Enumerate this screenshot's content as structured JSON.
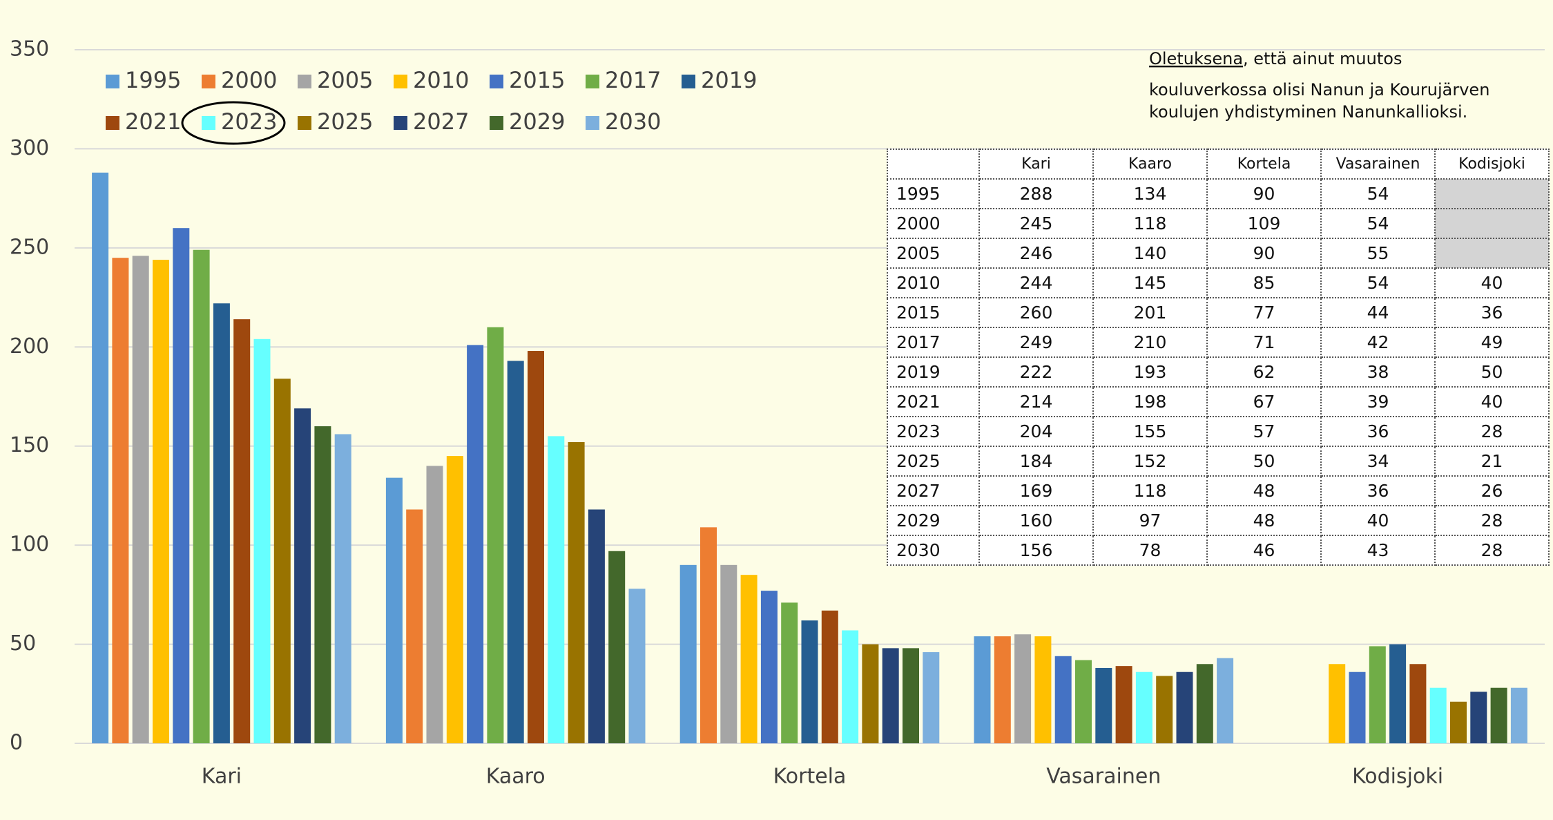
{
  "chart_data": {
    "type": "bar",
    "categories": [
      "Kari",
      "Kaaro",
      "Kortela",
      "Vasarainen",
      "Kodisjoki"
    ],
    "series": [
      {
        "name": "1995",
        "color": "#5b9bd5",
        "values": [
          288,
          134,
          90,
          54,
          null
        ]
      },
      {
        "name": "2000",
        "color": "#ed7d31",
        "values": [
          245,
          118,
          109,
          54,
          null
        ]
      },
      {
        "name": "2005",
        "color": "#a5a5a5",
        "values": [
          246,
          140,
          90,
          55,
          null
        ]
      },
      {
        "name": "2010",
        "color": "#ffc000",
        "values": [
          244,
          145,
          85,
          54,
          40
        ]
      },
      {
        "name": "2015",
        "color": "#4472c4",
        "values": [
          260,
          201,
          77,
          44,
          36
        ]
      },
      {
        "name": "2017",
        "color": "#70ad47",
        "values": [
          249,
          210,
          71,
          42,
          49
        ]
      },
      {
        "name": "2019",
        "color": "#255e91",
        "values": [
          222,
          193,
          62,
          38,
          50
        ]
      },
      {
        "name": "2021",
        "color": "#9e480e",
        "values": [
          214,
          198,
          67,
          39,
          40
        ]
      },
      {
        "name": "2023",
        "color": "#66ffff",
        "values": [
          204,
          155,
          57,
          36,
          28
        ]
      },
      {
        "name": "2025",
        "color": "#997300",
        "values": [
          184,
          152,
          50,
          34,
          21
        ]
      },
      {
        "name": "2027",
        "color": "#264478",
        "values": [
          169,
          118,
          48,
          36,
          26
        ]
      },
      {
        "name": "2029",
        "color": "#43682b",
        "values": [
          160,
          97,
          48,
          40,
          28
        ]
      },
      {
        "name": "2030",
        "color": "#7cafdd",
        "values": [
          156,
          78,
          46,
          43,
          28
        ]
      }
    ],
    "ylim": [
      0,
      350
    ],
    "yticks": [
      0,
      50,
      100,
      150,
      200,
      250,
      300,
      350
    ],
    "grid": true,
    "legend": "top",
    "annotation": {
      "underlined": "Oletuksena",
      "lines": [
        ", että ainut muutos",
        "kouluverkossa olisi Nanun ja Kourujärven",
        "koulujen yhdistyminen Nanunkallioksi."
      ]
    }
  }
}
